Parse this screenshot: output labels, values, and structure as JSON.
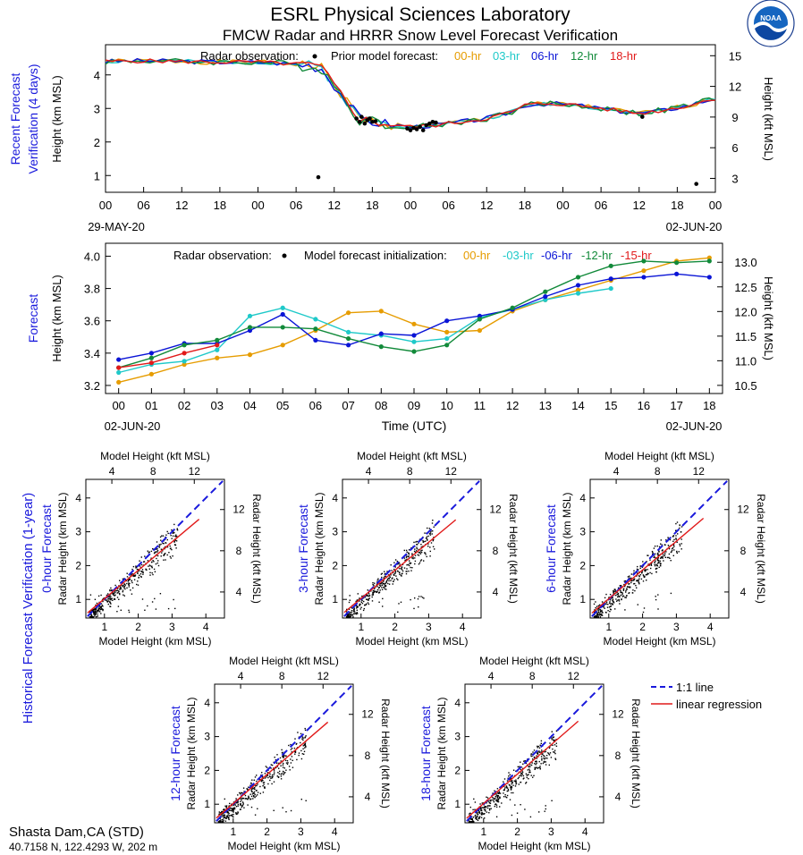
{
  "header": {
    "title": "ESRL Physical Sciences Laboratory",
    "subtitle": "FMCW Radar and HRRR Snow Level Forecast Verification",
    "logo_text": "NOAA"
  },
  "colors": {
    "00-hr": "#e69c00",
    "03-hr": "#1fc9c9",
    "06-hr": "#0a14d6",
    "12-hr": "#128a3a",
    "15-hr": "#e11a1a",
    "18-hr": "#e11a1a",
    "panel_label": "#1a1adc"
  },
  "site": {
    "name": "Shasta Dam,CA (STD)",
    "coords": "40.7158 N, 122.4293 W, 202 m"
  },
  "chart_data": [
    {
      "id": "recent",
      "type": "line",
      "side_label": [
        "Recent Forecast",
        "Verification (4 days)"
      ],
      "ylabel": "Height (km MSL)",
      "ylabel_right": "Height (kft MSL)",
      "legend_obs": "Radar observation:",
      "legend_title": "Prior model forecast:",
      "legend_items": [
        "00-hr",
        "03-hr",
        "06-hr",
        "12-hr",
        "18-hr"
      ],
      "xlim": [
        0,
        96
      ],
      "ylim": [
        0.5,
        4.9
      ],
      "yticks": [
        1,
        2,
        3,
        4
      ],
      "yticks_right": [
        3,
        6,
        9,
        12,
        15
      ],
      "xticks": [
        0,
        6,
        12,
        18,
        24,
        30,
        36,
        42,
        48,
        54,
        60,
        66,
        72,
        78,
        84,
        90,
        96
      ],
      "xtick_labels": [
        "00",
        "06",
        "12",
        "18",
        "00",
        "06",
        "12",
        "18",
        "00",
        "06",
        "12",
        "18",
        "00",
        "06",
        "12",
        "18",
        "00"
      ],
      "date_left": "29-MAY-20",
      "date_right": "02-JUN-20",
      "base_x": [
        0,
        6,
        12,
        18,
        24,
        28,
        32,
        34,
        36,
        38,
        40,
        42,
        44,
        48,
        52,
        56,
        60,
        64,
        66,
        70,
        74,
        78,
        82,
        84,
        88,
        92,
        96
      ],
      "base_y": [
        4.4,
        4.42,
        4.4,
        4.38,
        4.38,
        4.34,
        4.3,
        4.2,
        3.7,
        3.2,
        2.7,
        2.6,
        2.55,
        2.45,
        2.5,
        2.6,
        2.7,
        2.9,
        3.1,
        3.15,
        3.1,
        3.0,
        2.9,
        2.85,
        2.95,
        3.1,
        3.3
      ],
      "series": [
        {
          "name": "00-hr",
          "jitter": 0.07,
          "seed": 1
        },
        {
          "name": "03-hr",
          "jitter": 0.06,
          "seed": 2
        },
        {
          "name": "06-hr",
          "jitter": 0.07,
          "seed": 3
        },
        {
          "name": "12-hr",
          "jitter": 0.09,
          "seed": 4
        },
        {
          "name": "18-hr",
          "jitter": 0.06,
          "seed": 5
        }
      ],
      "observations": [
        [
          33.5,
          0.95
        ],
        [
          39.5,
          2.7
        ],
        [
          40,
          2.6
        ],
        [
          40.3,
          2.75
        ],
        [
          40.8,
          2.55
        ],
        [
          41.2,
          2.65
        ],
        [
          41.6,
          2.7
        ],
        [
          42,
          2.6
        ],
        [
          42.5,
          2.62
        ],
        [
          47.5,
          2.4
        ],
        [
          48,
          2.35
        ],
        [
          48.5,
          2.42
        ],
        [
          49,
          2.38
        ],
        [
          49.5,
          2.45
        ],
        [
          50,
          2.35
        ],
        [
          50.5,
          2.5
        ],
        [
          51,
          2.55
        ],
        [
          51.5,
          2.6
        ],
        [
          52,
          2.58
        ],
        [
          84.5,
          2.75
        ],
        [
          93,
          0.75
        ]
      ]
    },
    {
      "id": "forecast",
      "type": "line",
      "side_label": [
        "Forecast"
      ],
      "ylabel": "Height (km MSL)",
      "ylabel_right": "Height (kft MSL)",
      "xlabel": "Time (UTC)",
      "legend_obs": "Radar observation:",
      "legend_title": "Model forecast initialization:",
      "legend_items": [
        "00-hr",
        "-03-hr",
        "-06-hr",
        "-12-hr",
        "-15-hr"
      ],
      "legend_keys": [
        "00-hr",
        "03-hr",
        "06-hr",
        "12-hr",
        "15-hr"
      ],
      "xlim": [
        -0.4,
        18.4
      ],
      "ylim": [
        3.15,
        4.08
      ],
      "yticks": [
        3.2,
        3.4,
        3.6,
        3.8,
        4.0
      ],
      "ytick_labels": [
        "3.2",
        "3.4",
        "3.6",
        "3.8",
        "4.0"
      ],
      "yticks_right": [
        10.5,
        11.0,
        11.5,
        12.0,
        12.5,
        13.0
      ],
      "ytick_labels_right": [
        "10.5",
        "11.0",
        "11.5",
        "12.0",
        "12.5",
        "13.0"
      ],
      "xticks": [
        0,
        1,
        2,
        3,
        4,
        5,
        6,
        7,
        8,
        9,
        10,
        11,
        12,
        13,
        14,
        15,
        16,
        17,
        18
      ],
      "xtick_labels": [
        "00",
        "01",
        "02",
        "03",
        "04",
        "05",
        "06",
        "07",
        "08",
        "09",
        "10",
        "11",
        "12",
        "13",
        "14",
        "15",
        "16",
        "17",
        "18"
      ],
      "date_left": "02-JUN-20",
      "date_right": "02-JUN-20",
      "series": [
        {
          "name": "00-hr",
          "x": [
            0,
            1,
            2,
            3,
            4,
            5,
            6,
            7,
            8,
            9,
            10,
            11,
            12,
            13,
            14,
            15,
            16,
            17,
            18
          ],
          "y": [
            3.22,
            3.27,
            3.33,
            3.37,
            3.39,
            3.45,
            3.54,
            3.65,
            3.66,
            3.58,
            3.53,
            3.54,
            3.66,
            3.73,
            3.79,
            3.85,
            3.91,
            3.97,
            3.99
          ]
        },
        {
          "name": "03-hr",
          "x": [
            0,
            1,
            2,
            3,
            4,
            5,
            6,
            7,
            8,
            9,
            10,
            11,
            12,
            13,
            14,
            15
          ],
          "y": [
            3.28,
            3.33,
            3.35,
            3.42,
            3.63,
            3.68,
            3.61,
            3.53,
            3.51,
            3.47,
            3.49,
            3.62,
            3.67,
            3.73,
            3.77,
            3.8
          ]
        },
        {
          "name": "06-hr",
          "x": [
            0,
            1,
            2,
            3,
            4,
            5,
            6,
            7,
            8,
            9,
            10,
            11,
            12,
            13,
            14,
            15,
            16,
            17,
            18
          ],
          "y": [
            3.36,
            3.4,
            3.46,
            3.46,
            3.54,
            3.64,
            3.48,
            3.45,
            3.52,
            3.51,
            3.6,
            3.63,
            3.67,
            3.75,
            3.82,
            3.86,
            3.87,
            3.89,
            3.87
          ]
        },
        {
          "name": "12-hr",
          "x": [
            0,
            1,
            2,
            3,
            4,
            5,
            6,
            7,
            8,
            9,
            10,
            11,
            12,
            13,
            14,
            15,
            16,
            17,
            18
          ],
          "y": [
            3.31,
            3.37,
            3.45,
            3.48,
            3.56,
            3.56,
            3.55,
            3.49,
            3.44,
            3.41,
            3.45,
            3.61,
            3.68,
            3.78,
            3.87,
            3.94,
            3.97,
            3.96,
            3.97
          ]
        },
        {
          "name": "15-hr",
          "x": [
            0,
            1,
            2,
            3
          ],
          "y": [
            3.31,
            3.34,
            3.4,
            3.45
          ]
        }
      ]
    },
    {
      "id": "historical",
      "type": "scatter",
      "side_label": "Historical Forecast Verification (1-year)",
      "xlabel": "Model Height (km MSL)",
      "xlabel_top": "Model Height (kft MSL)",
      "ylabel": "Radar Height (km MSL)",
      "ylabel_right": "Radar Height (kft MSL)",
      "xlim": [
        0.45,
        4.55
      ],
      "ylim": [
        0.45,
        4.55
      ],
      "ticks": [
        1,
        2,
        3,
        4
      ],
      "ticks_kft": [
        4,
        8,
        12
      ],
      "legend": {
        "one_to_one": "1:1 line",
        "regression": "linear regression"
      },
      "panels": [
        {
          "label": "0-hour Forecast",
          "slope": 0.84,
          "intercept": 0.18,
          "seed": 11
        },
        {
          "label": "3-hour Forecast",
          "slope": 0.83,
          "intercept": 0.2,
          "seed": 12
        },
        {
          "label": "6-hour Forecast",
          "slope": 0.85,
          "intercept": 0.17,
          "seed": 13
        },
        {
          "label": "12-hour Forecast",
          "slope": 0.86,
          "intercept": 0.16,
          "seed": 14
        },
        {
          "label": "18-hour Forecast",
          "slope": 0.87,
          "intercept": 0.15,
          "seed": 15
        }
      ]
    }
  ]
}
